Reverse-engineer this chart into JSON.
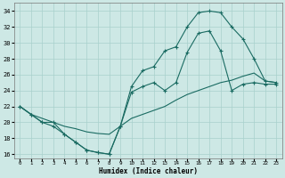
{
  "title": "",
  "xlabel": "Humidex (Indice chaleur)",
  "ylabel": "",
  "xlim": [
    -0.5,
    23.5
  ],
  "ylim": [
    15.5,
    35
  ],
  "xticks": [
    0,
    1,
    2,
    3,
    4,
    5,
    6,
    7,
    8,
    9,
    10,
    11,
    12,
    13,
    14,
    15,
    16,
    17,
    18,
    19,
    20,
    21,
    22,
    23
  ],
  "yticks": [
    16,
    18,
    20,
    22,
    24,
    26,
    28,
    30,
    32,
    34
  ],
  "bg_color": "#cde8e5",
  "grid_color": "#a8d0cc",
  "line_color": "#1a6b62",
  "line1_y": [
    22,
    21,
    20,
    19.5,
    18.5,
    17.5,
    16.5,
    16.2,
    16.0,
    19.5,
    24.5,
    26.5,
    27,
    29,
    29.5,
    32,
    33.8,
    34.0,
    33.8,
    32,
    30.5,
    28,
    25.2,
    25.0
  ],
  "line2_y": [
    22,
    21,
    20.0,
    20.0,
    18.5,
    17.5,
    16.5,
    16.2,
    16.0,
    19.5,
    23.8,
    24.5,
    25.0,
    24.0,
    25.0,
    28.8,
    31.2,
    31.5,
    29,
    24,
    24.8,
    25,
    24.8,
    24.8
  ],
  "line3_y": [
    22,
    21,
    20.5,
    20.0,
    19.5,
    19.2,
    18.8,
    18.6,
    18.5,
    19.5,
    20.5,
    21.0,
    21.5,
    22.0,
    22.8,
    23.5,
    24.0,
    24.5,
    25.0,
    25.3,
    25.8,
    26.2,
    25.2,
    25.0
  ],
  "figsize": [
    3.2,
    2.0
  ],
  "dpi": 100
}
